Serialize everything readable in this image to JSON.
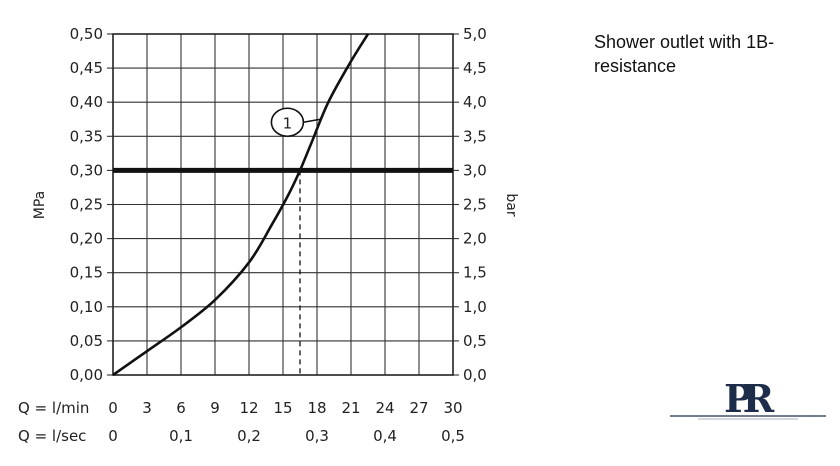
{
  "note": "Shower outlet with 1B-resistance",
  "logo_text": "PR",
  "chart_data": {
    "type": "line",
    "title": "",
    "ylabel_left": "MPa",
    "ylabel_right": "bar",
    "x_row_labels": [
      "Q = l/min",
      "Q = l/sec"
    ],
    "x_ticks_lmin": [
      "0",
      "3",
      "6",
      "9",
      "12",
      "15",
      "18",
      "21",
      "24",
      "27",
      "30"
    ],
    "x_ticks_lsec": [
      {
        "value": 0,
        "label": "0"
      },
      {
        "value": 0.1,
        "label": "0,1"
      },
      {
        "value": 0.2,
        "label": "0,2"
      },
      {
        "value": 0.3,
        "label": "0,3"
      },
      {
        "value": 0.4,
        "label": "0,4"
      },
      {
        "value": 0.5,
        "label": "0,5"
      }
    ],
    "y_ticks_mpa": [
      "0,00",
      "0,05",
      "0,10",
      "0,15",
      "0,20",
      "0,25",
      "0,30",
      "0,35",
      "0,40",
      "0,45",
      "0,50"
    ],
    "y_ticks_bar": [
      "0,0",
      "0,5",
      "1,0",
      "1,5",
      "2,0",
      "2,5",
      "3,0",
      "3,5",
      "4,0",
      "4,5",
      "5,0"
    ],
    "xlim": [
      0,
      30
    ],
    "ylim": [
      0,
      0.5
    ],
    "grid": true,
    "series": [
      {
        "label": "1",
        "x": [
          0,
          3,
          6,
          9,
          12,
          14,
          15.5,
          16.5,
          17.5,
          19,
          21,
          22.5
        ],
        "y": [
          0,
          0.035,
          0.07,
          0.11,
          0.165,
          0.22,
          0.265,
          0.3,
          0.34,
          0.4,
          0.46,
          0.5
        ]
      }
    ],
    "reference_line": {
      "y": 0.3
    },
    "operating_point": {
      "x": 16.5,
      "y": 0.3
    },
    "label_anchor": {
      "x": 18.3,
      "y": 0.375
    }
  }
}
